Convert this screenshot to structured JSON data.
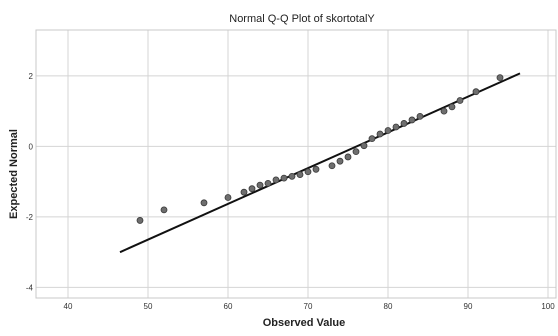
{
  "chart_data": {
    "type": "scatter",
    "title": "Normal Q-Q Plot of skortotalY",
    "xlabel": "Observed Value",
    "ylabel": "Expected Normal",
    "xlim": [
      36,
      101
    ],
    "ylim": [
      -4.3,
      3.3
    ],
    "x_ticks": [
      40,
      50,
      60,
      70,
      80,
      90,
      100
    ],
    "y_ticks": [
      2,
      0,
      -2,
      -4
    ],
    "grid": true,
    "legend": "none",
    "colors": {
      "point_fill": "#6e6e6e",
      "point_stroke": "#3a3a3a",
      "line": "#111111",
      "grid": "#d4d4d4",
      "frame": "#c8c8c8"
    },
    "series": [
      {
        "points": [
          {
            "x": 49,
            "y": -2.1
          },
          {
            "x": 52,
            "y": -1.8
          },
          {
            "x": 57,
            "y": -1.6
          },
          {
            "x": 60,
            "y": -1.45
          },
          {
            "x": 62,
            "y": -1.3
          },
          {
            "x": 63,
            "y": -1.2
          },
          {
            "x": 64,
            "y": -1.1
          },
          {
            "x": 65,
            "y": -1.05
          },
          {
            "x": 66,
            "y": -0.95
          },
          {
            "x": 67,
            "y": -0.9
          },
          {
            "x": 68,
            "y": -0.85
          },
          {
            "x": 69,
            "y": -0.8
          },
          {
            "x": 70,
            "y": -0.72
          },
          {
            "x": 71,
            "y": -0.65
          },
          {
            "x": 73,
            "y": -0.55
          },
          {
            "x": 74,
            "y": -0.42
          },
          {
            "x": 75,
            "y": -0.3
          },
          {
            "x": 76,
            "y": -0.15
          },
          {
            "x": 77,
            "y": 0.02
          },
          {
            "x": 78,
            "y": 0.22
          },
          {
            "x": 79,
            "y": 0.35
          },
          {
            "x": 80,
            "y": 0.45
          },
          {
            "x": 81,
            "y": 0.55
          },
          {
            "x": 82,
            "y": 0.65
          },
          {
            "x": 83,
            "y": 0.75
          },
          {
            "x": 84,
            "y": 0.85
          },
          {
            "x": 87,
            "y": 1.0
          },
          {
            "x": 88,
            "y": 1.12
          },
          {
            "x": 89,
            "y": 1.3
          },
          {
            "x": 91,
            "y": 1.55
          },
          {
            "x": 94,
            "y": 1.95
          }
        ]
      }
    ],
    "reference_line": {
      "x": [
        46.5,
        96.5
      ],
      "y": [
        -3.0,
        2.07
      ]
    }
  }
}
